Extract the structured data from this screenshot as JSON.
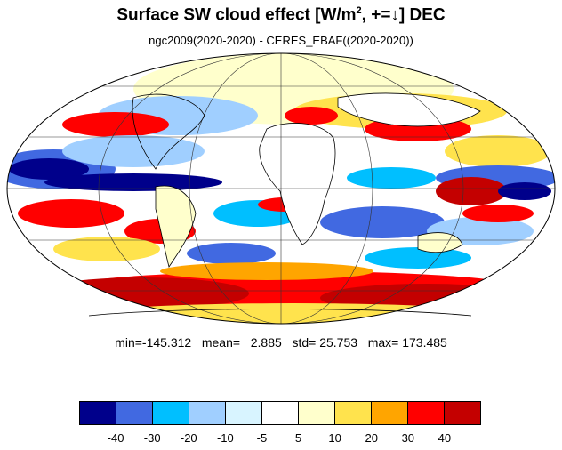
{
  "title": {
    "main": "Surface SW cloud effect [W/m",
    "sup": "2",
    "rest": ", +=↓]  DEC"
  },
  "subtitle": "ngc2009(2020-2020) - CERES_EBAF((2020-2020))",
  "stats": {
    "min_label": "min=",
    "min": "-145.312",
    "mean_label": "mean=",
    "mean": "2.885",
    "std_label": "std=",
    "std": "25.753",
    "max_label": "max=",
    "max": "173.485"
  },
  "colorbar": {
    "colors": [
      "#00008b",
      "#4169e1",
      "#00bfff",
      "#a0cfff",
      "#d8f4ff",
      "#ffffff",
      "#ffffcc",
      "#ffe34d",
      "#ffa500",
      "#ff0000",
      "#c40000"
    ],
    "labels": [
      "-40",
      "-30",
      "-20",
      "-10",
      "-5",
      "5",
      "10",
      "20",
      "30",
      "40"
    ]
  },
  "map": {
    "projection": "Mollweide",
    "ocean_color_hint": "#ffffff"
  }
}
